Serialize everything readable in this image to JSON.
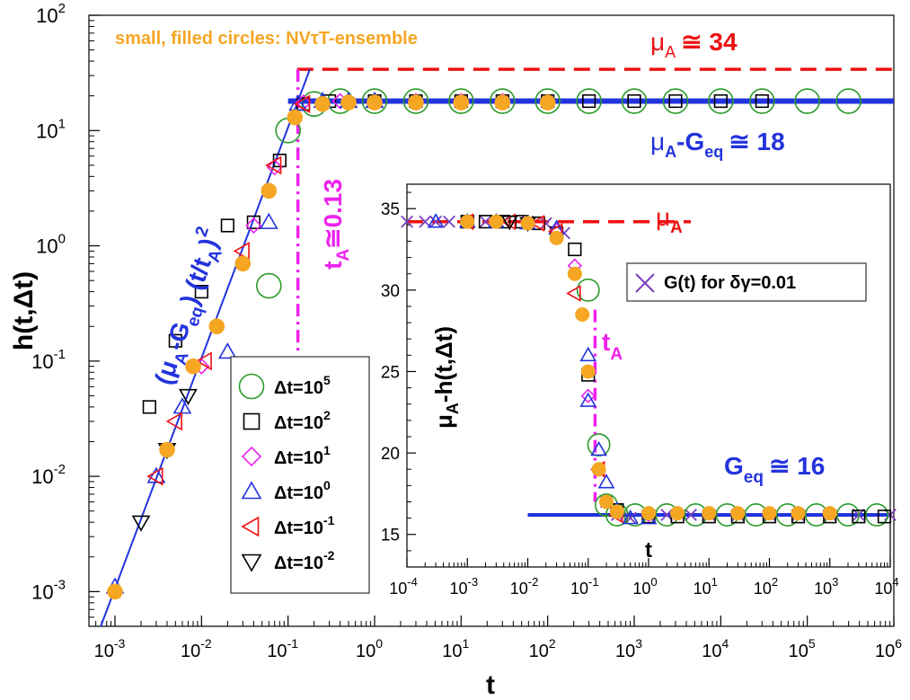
{
  "chart_data": [
    {
      "type": "scatter",
      "axis_scale": "log-log",
      "xlabel": "t",
      "ylabel": "h(t,Δt)",
      "xlim": [
        0.0005,
        1000000
      ],
      "ylim": [
        0.0005,
        100
      ],
      "x_tick_exponents": [
        "-3",
        "-2",
        "-1",
        "0",
        "1",
        "2",
        "3",
        "4",
        "5",
        "6"
      ],
      "y_tick_exponents": [
        "-3",
        "-2",
        "-1",
        "0",
        "1",
        "2"
      ],
      "tick_base": "10",
      "annotations": {
        "top_note": "small, filled circles: NVτT-ensemble",
        "mu_a_symbol": "μ",
        "mu_a_sub": "A",
        "mu_a_approx": "≅ 34",
        "plateau_sub_eq": "eq",
        "plateau_approx": "≅ 18",
        "ta_sub": "A",
        "ta_approx": "≅0.13",
        "fit_label_open": "(μ",
        "fit_label_mid": "-G",
        "fit_label_close": ") (t/t",
        "fit_label_end": ")",
        "fit_label_power": "2"
      },
      "reference_lines": {
        "mu_a": 34,
        "plateau": 18,
        "t_a": 0.13
      },
      "legend": {
        "position": "bottom-left",
        "entries": [
          {
            "symbol": "circle",
            "color": "#2a9a2a",
            "prefix": "Δt=10",
            "exp": "5"
          },
          {
            "symbol": "square",
            "color": "#000000",
            "prefix": "Δt=10",
            "exp": "2"
          },
          {
            "symbol": "diamond",
            "color": "#ee22ee",
            "prefix": "Δt=10",
            "exp": "1"
          },
          {
            "symbol": "triangle-up",
            "color": "#2233dd",
            "prefix": "Δt=10",
            "exp": "0"
          },
          {
            "symbol": "triangle-left",
            "color": "#ee1111",
            "prefix": "Δt=10",
            "exp": "-1"
          },
          {
            "symbol": "triangle-down",
            "color": "#000000",
            "prefix": "Δt=10",
            "exp": "-2"
          }
        ]
      },
      "series": [
        {
          "name": "Δt=10^5",
          "x": [
            0.06,
            0.1,
            0.2,
            0.4,
            1,
            3,
            10,
            30,
            100,
            300,
            1000,
            3000,
            10000,
            30000,
            100000,
            300000
          ],
          "y": [
            0.45,
            10,
            17,
            18,
            18,
            18,
            18,
            18,
            18,
            18,
            18,
            18,
            18,
            18,
            18,
            18
          ]
        },
        {
          "name": "Δt=10^2",
          "x": [
            0.0025,
            0.005,
            0.01,
            0.02,
            0.04,
            0.08,
            0.15,
            0.3,
            1,
            3,
            10,
            30,
            100,
            300,
            1000,
            3000,
            10000,
            30000
          ],
          "y": [
            0.04,
            0.15,
            0.4,
            1.5,
            1.6,
            5.5,
            17,
            18,
            18,
            18,
            18,
            18,
            18,
            18,
            18,
            18,
            18,
            18
          ]
        },
        {
          "name": "Δt=10^1",
          "x": [
            0.01,
            0.04,
            0.07,
            0.15,
            0.4,
            1,
            3,
            10,
            30
          ],
          "y": [
            0.09,
            1.5,
            4.8,
            17.5,
            18,
            18,
            18,
            18,
            18
          ]
        },
        {
          "name": "Δt=10^0",
          "x": [
            0.001,
            0.003,
            0.006,
            0.02,
            0.06,
            0.13,
            0.25,
            0.5,
            1
          ],
          "y": [
            0.0011,
            0.01,
            0.04,
            0.12,
            1.6,
            17,
            18,
            18,
            18
          ]
        },
        {
          "name": "Δt=10^-1",
          "x": [
            0.003,
            0.005,
            0.011,
            0.03,
            0.07,
            0.15
          ],
          "y": [
            0.01,
            0.03,
            0.1,
            0.9,
            5,
            17
          ]
        },
        {
          "name": "Δt=10^-2",
          "x": [
            0.002,
            0.004,
            0.007
          ],
          "y": [
            0.004,
            0.017,
            0.05
          ]
        },
        {
          "name": "NVτT (filled)",
          "x": [
            0.001,
            0.004,
            0.008,
            0.015,
            0.03,
            0.06,
            0.12,
            0.25,
            0.5,
            1,
            3,
            10,
            30,
            100
          ],
          "y": [
            0.001,
            0.017,
            0.09,
            0.2,
            0.7,
            3,
            13,
            17,
            17.5,
            17.5,
            17.5,
            17.5,
            17.5,
            17.5
          ]
        }
      ]
    },
    {
      "type": "scatter",
      "axis_scale": "log-linear",
      "inset": true,
      "xlabel": "t",
      "ylabel": "μ_A-h(t,Δt)",
      "ylabel_parts": {
        "symbol": "μ",
        "sub": "A",
        "rest": "-h(t,Δt)"
      },
      "xlim": [
        0.0001,
        10000
      ],
      "ylim": [
        13,
        36.5
      ],
      "x_tick_exponents": [
        "-4",
        "-3",
        "-2",
        "-1",
        "0",
        "1",
        "2",
        "3",
        "4"
      ],
      "y_ticks": [
        "15",
        "20",
        "25",
        "30",
        "35"
      ],
      "tick_base": "10",
      "annotations": {
        "mu_a_symbol": "μ",
        "mu_a_sub": "A",
        "ta_letter": "t",
        "ta_sub": "A",
        "geq_letter": "G",
        "geq_sub": "eq",
        "geq_approx": "≅ 16",
        "legend_text": "G(t) for δγ=0.01"
      },
      "reference_lines": {
        "mu_a": 34.2,
        "geq": 16.2,
        "t_a": 0.13
      },
      "series": [
        {
          "name": "G(t) for δγ=0.01",
          "marker": "x",
          "x": [
            0.0001,
            0.0002,
            0.0003,
            0.0005,
            0.001,
            0.002,
            0.004,
            0.01,
            0.02,
            0.04,
            0.2,
            0.3,
            0.5,
            1,
            2,
            5,
            10,
            30,
            100,
            300,
            1000,
            3000,
            10000
          ],
          "y": [
            34.2,
            34.2,
            34.2,
            34.2,
            34.2,
            34.2,
            34.2,
            34.2,
            34.1,
            33.5,
            17,
            16.2,
            16,
            16.1,
            16.2,
            16.2,
            16.2,
            16.2,
            16.2,
            16.2,
            16.2,
            16.2,
            16.2
          ]
        },
        {
          "name": "Δt=10^5",
          "marker": "circle",
          "x": [
            0.1,
            0.15,
            0.2,
            0.3,
            0.6,
            2,
            6,
            20,
            60,
            200,
            600,
            2000,
            6000
          ],
          "y": [
            30,
            20.5,
            16.8,
            16.2,
            16.2,
            16.2,
            16.2,
            16.2,
            16.2,
            16.2,
            16.2,
            16.2,
            16.2
          ]
        },
        {
          "name": "Δt=10^2",
          "marker": "square",
          "x": [
            0.001,
            0.002,
            0.004,
            0.008,
            0.015,
            0.03,
            0.06,
            0.1,
            0.3,
            1,
            3,
            10,
            30,
            100,
            300,
            1000,
            3000,
            8000
          ],
          "y": [
            34.2,
            34.2,
            34.2,
            34.2,
            34.1,
            33.5,
            32.5,
            24.8,
            16.5,
            16.1,
            16.1,
            16.1,
            16.1,
            16.1,
            16.1,
            16.1,
            16.1,
            16.1
          ]
        },
        {
          "name": "Δt=10^1",
          "marker": "diamond",
          "x": [
            0.001,
            0.003,
            0.01,
            0.03,
            0.06,
            0.1,
            0.3,
            1
          ],
          "y": [
            34.2,
            34.2,
            34.1,
            33.7,
            31.5,
            23.5,
            16.4,
            16.2
          ]
        },
        {
          "name": "Δt=10^0",
          "marker": "triangle-up",
          "x": [
            0.0003,
            0.001,
            0.003,
            0.01,
            0.03,
            0.1,
            0.1,
            0.15,
            0.2,
            0.3,
            0.5,
            1
          ],
          "y": [
            34.2,
            34.2,
            34.2,
            34.1,
            33.8,
            26,
            23.2,
            20.2,
            18.2,
            16.5,
            16,
            16
          ]
        },
        {
          "name": "Δt=10^-1",
          "marker": "triangle-left",
          "x": [
            0.001,
            0.005,
            0.015,
            0.03,
            0.06,
            0.15,
            0.3
          ],
          "y": [
            34.2,
            34.2,
            34.1,
            33.6,
            29.8,
            19,
            16.2
          ]
        },
        {
          "name": "Δt=10^-2",
          "marker": "triangle-down",
          "x": [
            0.005,
            0.01
          ],
          "y": [
            34.2,
            34.1
          ]
        },
        {
          "name": "NVτT (filled)",
          "marker": "filled-circle",
          "x": [
            0.001,
            0.003,
            0.01,
            0.03,
            0.06,
            0.08,
            0.1,
            0.15,
            0.2,
            0.3,
            1,
            3,
            10,
            30,
            100,
            300,
            1000
          ],
          "y": [
            34.2,
            34.2,
            34.1,
            33.2,
            31,
            28.5,
            25,
            19,
            17,
            16.4,
            16.3,
            16.3,
            16.3,
            16.3,
            16.3,
            16.3,
            16.3
          ]
        }
      ]
    }
  ]
}
